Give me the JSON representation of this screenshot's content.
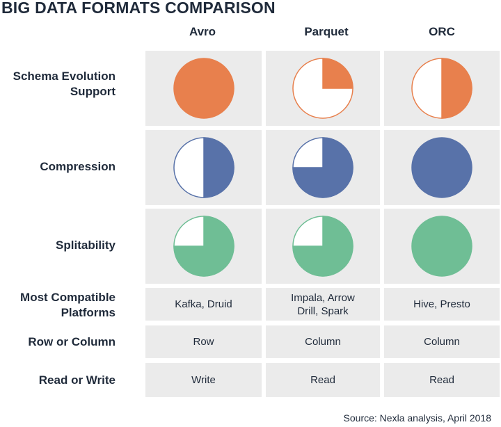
{
  "title": "BIG DATA FORMATS COMPARISON",
  "columns": [
    "Avro",
    "Parquet",
    "ORC"
  ],
  "rows": [
    {
      "label": "Schema Evolution Support",
      "color": "#e8804d"
    },
    {
      "label": "Compression",
      "color": "#5872a9"
    },
    {
      "label": "Splitability",
      "color": "#6fbe95"
    },
    {
      "label": "Most Compatible Platforms"
    },
    {
      "label": "Row or Column"
    },
    {
      "label": "Read or Write"
    }
  ],
  "ratings": {
    "schema_evolution": {
      "avro": 1.0,
      "parquet": 0.25,
      "orc": 0.5
    },
    "compression": {
      "avro": 0.5,
      "parquet": 0.75,
      "orc": 1.0
    },
    "splitability": {
      "avro": 0.75,
      "parquet": 0.75,
      "orc": 1.0
    }
  },
  "text_cells": {
    "platforms": {
      "avro": "Kafka, Druid",
      "parquet": "Impala, Arrow Drill, Spark",
      "orc": "Hive, Presto"
    },
    "row_or_column": {
      "avro": "Row",
      "parquet": "Column",
      "orc": "Column"
    },
    "read_or_write": {
      "avro": "Write",
      "parquet": "Read",
      "orc": "Read"
    }
  },
  "source": "Source: Nexla analysis, April 2018"
}
